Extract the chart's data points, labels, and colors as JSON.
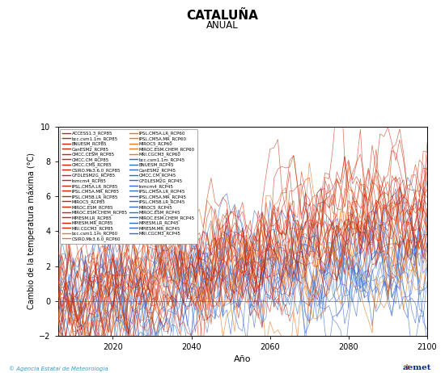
{
  "title": "CATALUÑA",
  "subtitle": "ANUAL",
  "xlabel": "Año",
  "ylabel": "Cambio de la temperatura máxima (°C)",
  "xlim": [
    2006,
    2100
  ],
  "ylim": [
    -2,
    10
  ],
  "xticks": [
    2020,
    2040,
    2060,
    2080,
    2100
  ],
  "yticks": [
    -2,
    0,
    2,
    4,
    6,
    8,
    10
  ],
  "x_start": 2006,
  "x_end": 2100,
  "color_rcp85": "#cc2200",
  "color_rcp60": "#e87820",
  "color_rcp45": "#3366cc",
  "legend_col1": [
    "ACCESS1.3_RCP85",
    "bcc.csm1.1m_RCP85",
    "BNUESM_RCP85",
    "CanESM2_RCP85",
    "CMCC.CESM_RCP85",
    "CMCC.CM_RCP85",
    "CMCC.CMS_RCP85",
    "CSIRO.Mk3.6.0_RCP85",
    "GFDLESM2G_RCP85",
    "Inmcm4_RCP85",
    "IPSL.CM5A.LR_RCP85",
    "IPSL.CM5A.MR_RCP85",
    "IPSL.CM5B.LR_RCP85",
    "MIROC5_RCP85",
    "MIROC.ESM_RCP85",
    "MIROC.ESM.CHEM_RCP85",
    "MPIESM.LR_RCP85",
    "MPIESM.MR_RCP85",
    "MRI.CGCM3_RCP85",
    "bcc.csm1.1m_RCP60",
    "CSIRO.Mk3.6.0_RCP60"
  ],
  "legend_col2": [
    "IPSL.CM5A.LR_RCP60",
    "IPSL.CM5A.MR_RCP60",
    "MIROC5_RCP60",
    "MIROC.ESM.CHEM_RCP60",
    "MRI.CGCM3_RCP60",
    "bcc.csm1.1m_RCP45",
    "BNUESM_RCP45",
    "CanESM2_RCP45",
    "CMCC.CM_RCP45",
    "GFDLESM2G_RCP45",
    "Inmcm4_RCP45",
    "IPSL.CM5A.LR_RCP45",
    "IPSL.CM5A.MR_RCP45",
    "IPSL.CM5B.LR_RCP45",
    "MIROC5_RCP45",
    "MIROC.ESM_RCP45",
    "MIROC.ESM.CHEM_RCP45",
    "MPIESM.LR_RCP45",
    "MPIESM.MR_RCP45",
    "MRI.CGCM3_RCP45"
  ],
  "n_rcp85": 19,
  "n_rcp60": 7,
  "n_rcp45": 15,
  "rcp85_trend": 5.5,
  "rcp60_trend": 3.2,
  "rcp45_trend": 2.5,
  "noise_scale": 1.2,
  "ar_coef": 0.75,
  "seed": 42,
  "watermark_left": "© Agencia Estatal de Meteorología"
}
